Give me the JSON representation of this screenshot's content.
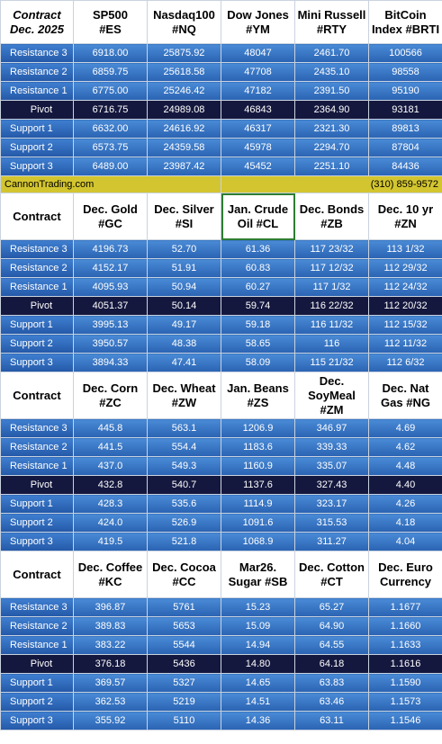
{
  "section1": {
    "header": {
      "contract": [
        "Contract",
        "Dec. 2025"
      ],
      "columns": [
        [
          "SP500",
          "#ES"
        ],
        [
          "Nasdaq100",
          "#NQ"
        ],
        [
          "Dow Jones",
          "#YM"
        ],
        [
          "Mini Russell",
          "#RTY"
        ],
        [
          "BitCoin",
          "Index #BRTI"
        ]
      ]
    },
    "rows": [
      {
        "label": "Resistance 3",
        "values": [
          "6918.00",
          "25875.92",
          "48047",
          "2461.70",
          "100566"
        ]
      },
      {
        "label": "Resistance 2",
        "values": [
          "6859.75",
          "25618.58",
          "47708",
          "2435.10",
          "98558"
        ]
      },
      {
        "label": "Resistance 1",
        "values": [
          "6775.00",
          "25246.42",
          "47182",
          "2391.50",
          "95190"
        ]
      },
      {
        "label": "Pivot",
        "values": [
          "6716.75",
          "24989.08",
          "46843",
          "2364.90",
          "93181"
        ]
      },
      {
        "label": "Support 1",
        "values": [
          "6632.00",
          "24616.92",
          "46317",
          "2321.30",
          "89813"
        ]
      },
      {
        "label": "Support 2",
        "values": [
          "6573.75",
          "24359.58",
          "45978",
          "2294.70",
          "87804"
        ]
      },
      {
        "label": "Support 3",
        "values": [
          "6489.00",
          "23987.42",
          "45452",
          "2251.10",
          "84436"
        ]
      }
    ]
  },
  "banner": {
    "site": "CannonTrading.com",
    "phone": "(310) 859-9572"
  },
  "section2": {
    "header": {
      "contract": [
        "Contract"
      ],
      "columns": [
        [
          "Dec. Gold",
          "#GC"
        ],
        [
          "Dec. Silver",
          "#SI"
        ],
        [
          "Jan. Crude",
          "Oil #CL"
        ],
        [
          "Dec. Bonds",
          "#ZB"
        ],
        [
          "Dec. 10 yr",
          "#ZN"
        ]
      ]
    },
    "rows": [
      {
        "label": "Resistance 3",
        "values": [
          "4196.73",
          "52.70",
          "61.36",
          "117 23/32",
          "113  1/32"
        ]
      },
      {
        "label": "Resistance 2",
        "values": [
          "4152.17",
          "51.91",
          "60.83",
          "117 12/32",
          "112 29/32"
        ]
      },
      {
        "label": "Resistance 1",
        "values": [
          "4095.93",
          "50.94",
          "60.27",
          "117  1/32",
          "112 24/32"
        ]
      },
      {
        "label": "Pivot",
        "values": [
          "4051.37",
          "50.14",
          "59.74",
          "116 22/32",
          "112 20/32"
        ]
      },
      {
        "label": "Support 1",
        "values": [
          "3995.13",
          "49.17",
          "59.18",
          "116 11/32",
          "112 15/32"
        ]
      },
      {
        "label": "Support 2",
        "values": [
          "3950.57",
          "48.38",
          "58.65",
          "116",
          "112 11/32"
        ]
      },
      {
        "label": "Support 3",
        "values": [
          "3894.33",
          "47.41",
          "58.09",
          "115 21/32",
          "112  6/32"
        ]
      }
    ]
  },
  "section3": {
    "header": {
      "contract": [
        "Contract"
      ],
      "columns": [
        [
          "Dec. Corn",
          "#ZC"
        ],
        [
          "Dec.  Wheat",
          "#ZW"
        ],
        [
          "Jan. Beans",
          "#ZS"
        ],
        [
          "Dec.",
          "SoyMeal",
          "#ZM"
        ],
        [
          "Dec. Nat",
          "Gas #NG"
        ]
      ]
    },
    "rows": [
      {
        "label": "Resistance 3",
        "values": [
          "445.8",
          "563.1",
          "1206.9",
          "346.97",
          "4.69"
        ]
      },
      {
        "label": "Resistance 2",
        "values": [
          "441.5",
          "554.4",
          "1183.6",
          "339.33",
          "4.62"
        ]
      },
      {
        "label": "Resistance 1",
        "values": [
          "437.0",
          "549.3",
          "1160.9",
          "335.07",
          "4.48"
        ]
      },
      {
        "label": "Pivot",
        "values": [
          "432.8",
          "540.7",
          "1137.6",
          "327.43",
          "4.40"
        ]
      },
      {
        "label": "Support 1",
        "values": [
          "428.3",
          "535.6",
          "1114.9",
          "323.17",
          "4.26"
        ]
      },
      {
        "label": "Support 2",
        "values": [
          "424.0",
          "526.9",
          "1091.6",
          "315.53",
          "4.18"
        ]
      },
      {
        "label": "Support 3",
        "values": [
          "419.5",
          "521.8",
          "1068.9",
          "311.27",
          "4.04"
        ]
      }
    ]
  },
  "section4": {
    "header": {
      "contract": [
        "Contract"
      ],
      "columns": [
        [
          "Dec. Coffee",
          "#KC"
        ],
        [
          "Dec. Cocoa",
          "#CC"
        ],
        [
          "Mar26.",
          "Sugar #SB"
        ],
        [
          "Dec. Cotton",
          "#CT"
        ],
        [
          "Dec. Euro",
          "Currency"
        ]
      ]
    },
    "rows": [
      {
        "label": "Resistance 3",
        "values": [
          "396.87",
          "5761",
          "15.23",
          "65.27",
          "1.1677"
        ]
      },
      {
        "label": "Resistance 2",
        "values": [
          "389.83",
          "5653",
          "15.09",
          "64.90",
          "1.1660"
        ]
      },
      {
        "label": "Resistance 1",
        "values": [
          "383.22",
          "5544",
          "14.94",
          "64.55",
          "1.1633"
        ]
      },
      {
        "label": "Pivot",
        "values": [
          "376.18",
          "5436",
          "14.80",
          "64.18",
          "1.1616"
        ]
      },
      {
        "label": "Support 1",
        "values": [
          "369.57",
          "5327",
          "14.65",
          "63.83",
          "1.1590"
        ]
      },
      {
        "label": "Support 2",
        "values": [
          "362.53",
          "5219",
          "14.51",
          "63.46",
          "1.1573"
        ]
      },
      {
        "label": "Support 3",
        "values": [
          "355.92",
          "5110",
          "14.36",
          "63.11",
          "1.1546"
        ]
      }
    ]
  }
}
